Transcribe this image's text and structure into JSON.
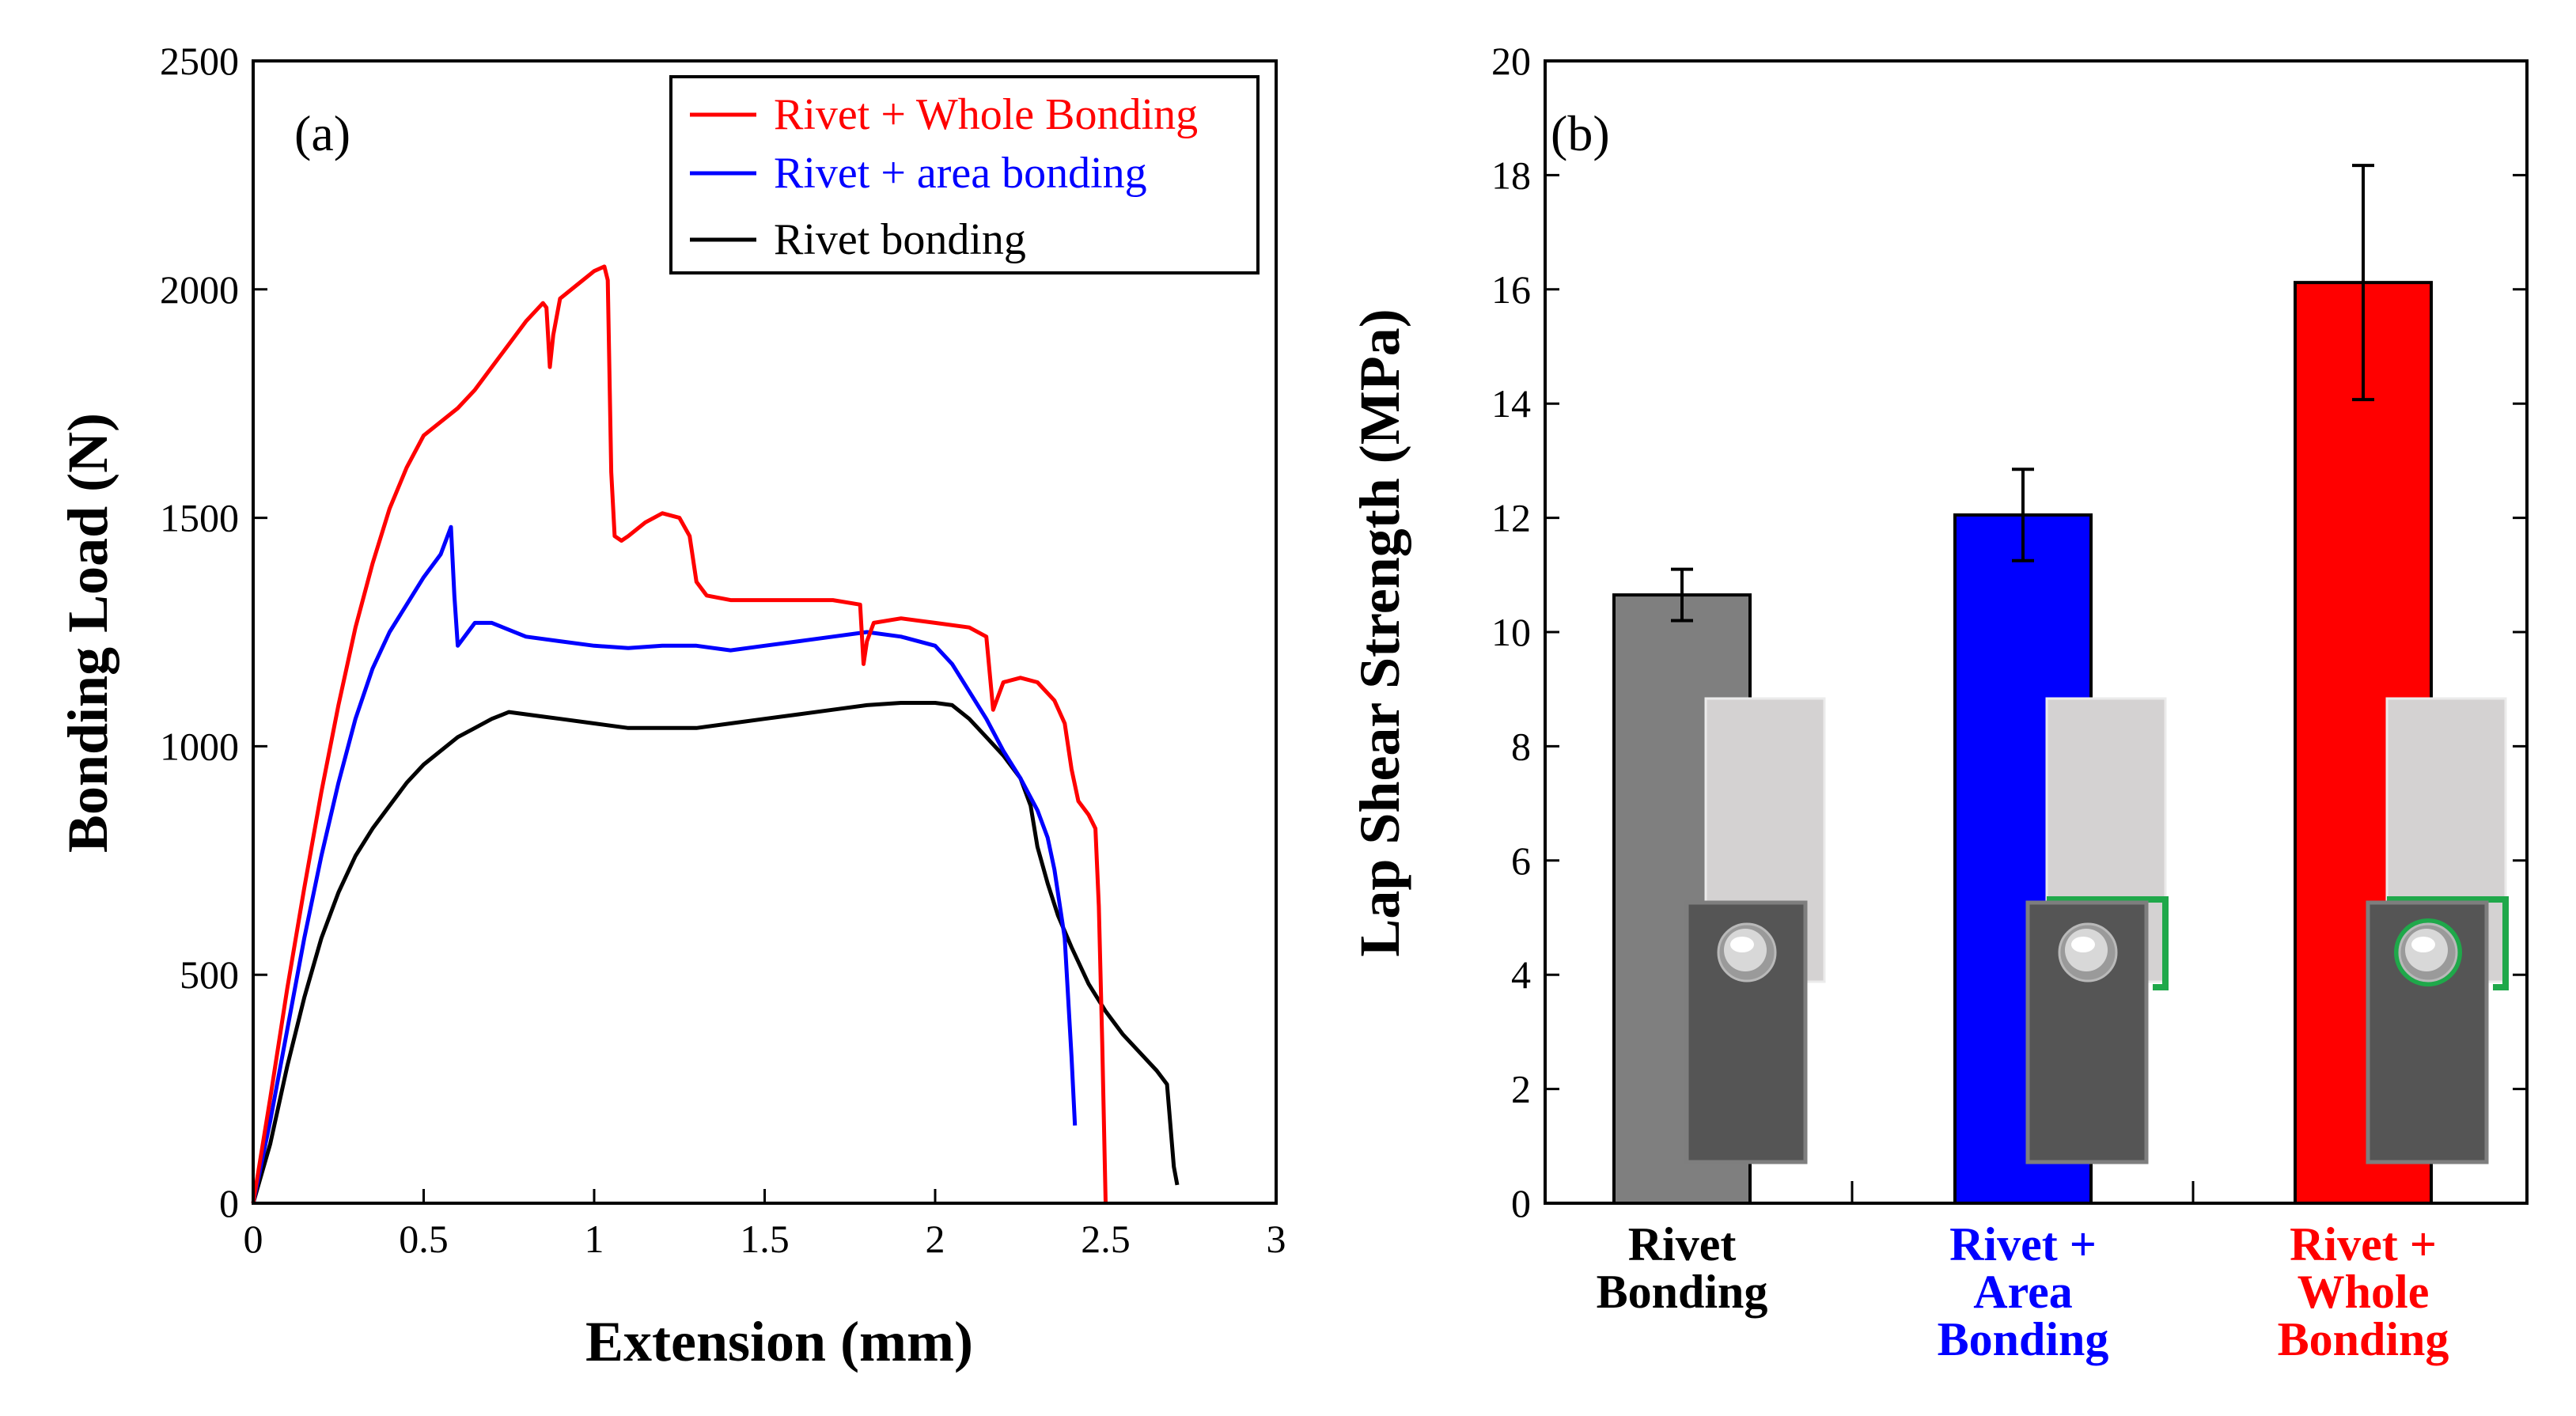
{
  "chart_data": [
    {
      "panel": "(a)",
      "type": "line",
      "xlabel": "Extension (mm)",
      "ylabel": "Bonding Load (N)",
      "xlim": [
        0,
        3
      ],
      "ylim": [
        0,
        2500
      ],
      "xticks": [
        "0",
        "0.5",
        "1",
        "1.5",
        "2",
        "2.5",
        "3"
      ],
      "yticks": [
        "0",
        "500",
        "1000",
        "1500",
        "2000",
        "2500"
      ],
      "legend_position": "top-right",
      "series": [
        {
          "name": "Rivet + Whole Bonding",
          "color": "#ff0000",
          "points": [
            [
              0,
              0
            ],
            [
              0.05,
              230
            ],
            [
              0.1,
              470
            ],
            [
              0.15,
              690
            ],
            [
              0.2,
              900
            ],
            [
              0.25,
              1090
            ],
            [
              0.3,
              1260
            ],
            [
              0.35,
              1400
            ],
            [
              0.4,
              1520
            ],
            [
              0.45,
              1610
            ],
            [
              0.5,
              1680
            ],
            [
              0.55,
              1710
            ],
            [
              0.6,
              1740
            ],
            [
              0.65,
              1780
            ],
            [
              0.7,
              1830
            ],
            [
              0.75,
              1880
            ],
            [
              0.8,
              1930
            ],
            [
              0.85,
              1970
            ],
            [
              0.86,
              1960
            ],
            [
              0.87,
              1830
            ],
            [
              0.88,
              1900
            ],
            [
              0.9,
              1980
            ],
            [
              0.95,
              2010
            ],
            [
              1.0,
              2040
            ],
            [
              1.03,
              2050
            ],
            [
              1.04,
              2020
            ],
            [
              1.05,
              1600
            ],
            [
              1.06,
              1460
            ],
            [
              1.08,
              1450
            ],
            [
              1.1,
              1460
            ],
            [
              1.15,
              1490
            ],
            [
              1.2,
              1510
            ],
            [
              1.25,
              1500
            ],
            [
              1.28,
              1460
            ],
            [
              1.3,
              1360
            ],
            [
              1.33,
              1330
            ],
            [
              1.4,
              1320
            ],
            [
              1.5,
              1320
            ],
            [
              1.6,
              1320
            ],
            [
              1.7,
              1320
            ],
            [
              1.78,
              1310
            ],
            [
              1.79,
              1180
            ],
            [
              1.8,
              1230
            ],
            [
              1.82,
              1270
            ],
            [
              1.9,
              1280
            ],
            [
              2.0,
              1270
            ],
            [
              2.1,
              1260
            ],
            [
              2.15,
              1240
            ],
            [
              2.17,
              1080
            ],
            [
              2.2,
              1140
            ],
            [
              2.25,
              1150
            ],
            [
              2.3,
              1140
            ],
            [
              2.35,
              1100
            ],
            [
              2.38,
              1050
            ],
            [
              2.4,
              950
            ],
            [
              2.42,
              880
            ],
            [
              2.45,
              850
            ],
            [
              2.47,
              820
            ],
            [
              2.48,
              650
            ],
            [
              2.49,
              350
            ],
            [
              2.5,
              0
            ]
          ]
        },
        {
          "name": "Rivet + area bonding",
          "color": "#0000ff",
          "points": [
            [
              0,
              0
            ],
            [
              0.05,
              180
            ],
            [
              0.1,
              380
            ],
            [
              0.15,
              580
            ],
            [
              0.2,
              760
            ],
            [
              0.25,
              920
            ],
            [
              0.3,
              1060
            ],
            [
              0.35,
              1170
            ],
            [
              0.4,
              1250
            ],
            [
              0.45,
              1310
            ],
            [
              0.5,
              1370
            ],
            [
              0.55,
              1420
            ],
            [
              0.58,
              1480
            ],
            [
              0.59,
              1330
            ],
            [
              0.6,
              1220
            ],
            [
              0.62,
              1240
            ],
            [
              0.65,
              1270
            ],
            [
              0.7,
              1270
            ],
            [
              0.8,
              1240
            ],
            [
              0.9,
              1230
            ],
            [
              1.0,
              1220
            ],
            [
              1.1,
              1215
            ],
            [
              1.2,
              1220
            ],
            [
              1.3,
              1220
            ],
            [
              1.4,
              1210
            ],
            [
              1.5,
              1220
            ],
            [
              1.6,
              1230
            ],
            [
              1.7,
              1240
            ],
            [
              1.8,
              1250
            ],
            [
              1.9,
              1240
            ],
            [
              2.0,
              1220
            ],
            [
              2.05,
              1180
            ],
            [
              2.1,
              1120
            ],
            [
              2.15,
              1060
            ],
            [
              2.2,
              990
            ],
            [
              2.25,
              930
            ],
            [
              2.3,
              860
            ],
            [
              2.33,
              800
            ],
            [
              2.35,
              730
            ],
            [
              2.38,
              580
            ],
            [
              2.4,
              320
            ],
            [
              2.41,
              170
            ]
          ]
        },
        {
          "name": "Rivet bonding",
          "color": "#000000",
          "points": [
            [
              0,
              0
            ],
            [
              0.05,
              130
            ],
            [
              0.1,
              300
            ],
            [
              0.15,
              450
            ],
            [
              0.2,
              580
            ],
            [
              0.25,
              680
            ],
            [
              0.3,
              760
            ],
            [
              0.35,
              820
            ],
            [
              0.4,
              870
            ],
            [
              0.45,
              920
            ],
            [
              0.5,
              960
            ],
            [
              0.55,
              990
            ],
            [
              0.6,
              1020
            ],
            [
              0.65,
              1040
            ],
            [
              0.7,
              1060
            ],
            [
              0.75,
              1075
            ],
            [
              0.8,
              1070
            ],
            [
              0.85,
              1065
            ],
            [
              0.9,
              1060
            ],
            [
              1.0,
              1050
            ],
            [
              1.1,
              1040
            ],
            [
              1.2,
              1040
            ],
            [
              1.3,
              1040
            ],
            [
              1.4,
              1050
            ],
            [
              1.5,
              1060
            ],
            [
              1.6,
              1070
            ],
            [
              1.7,
              1080
            ],
            [
              1.8,
              1090
            ],
            [
              1.9,
              1095
            ],
            [
              2.0,
              1095
            ],
            [
              2.05,
              1090
            ],
            [
              2.1,
              1060
            ],
            [
              2.15,
              1020
            ],
            [
              2.2,
              980
            ],
            [
              2.25,
              930
            ],
            [
              2.28,
              870
            ],
            [
              2.3,
              780
            ],
            [
              2.33,
              700
            ],
            [
              2.36,
              630
            ],
            [
              2.4,
              560
            ],
            [
              2.45,
              480
            ],
            [
              2.5,
              420
            ],
            [
              2.55,
              370
            ],
            [
              2.6,
              330
            ],
            [
              2.65,
              290
            ],
            [
              2.68,
              260
            ],
            [
              2.69,
              170
            ],
            [
              2.7,
              80
            ],
            [
              2.71,
              40
            ]
          ]
        }
      ]
    },
    {
      "panel": "(b)",
      "type": "bar",
      "ylabel": "Lap Shear Strength (MPa)",
      "ylim": [
        0,
        20
      ],
      "yticks": [
        "0",
        "2",
        "4",
        "6",
        "8",
        "10",
        "12",
        "14",
        "16",
        "18",
        "20"
      ],
      "categories": [
        {
          "lines": [
            "Rivet",
            "Bonding"
          ],
          "color": "#000000"
        },
        {
          "lines": [
            "Rivet +",
            "Area",
            "Bonding"
          ],
          "color": "#0000ff"
        },
        {
          "lines": [
            "Rivet +",
            "Whole",
            "Bonding"
          ],
          "color": "#ff0000"
        }
      ],
      "values": [
        10.65,
        12.05,
        16.12
      ],
      "errors": [
        0.45,
        0.8,
        2.05
      ],
      "bar_colors": [
        "#7f7f7f",
        "#0000ff",
        "#ff0000"
      ],
      "inset_icons": [
        "rivet-only-joint-icon",
        "rivet-area-bonding-joint-icon",
        "rivet-whole-bonding-joint-icon"
      ],
      "bond_color": "#1fa84a"
    }
  ]
}
